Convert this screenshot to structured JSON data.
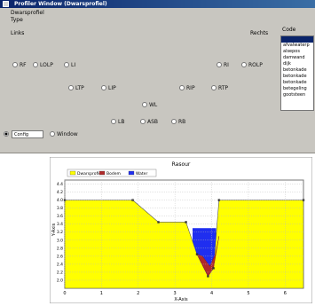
{
  "window": {
    "title": "Profiler Window (Dwarsprofiel)"
  },
  "labels": {
    "dwarsprofiel": "Dwarsprofiel",
    "type": "Type",
    "links": "Links",
    "rechts": "Rechts",
    "code": "Code"
  },
  "radios_left": {
    "rf": "RF",
    "lolp": "LOLP",
    "li": "LI"
  },
  "radios_right": {
    "ri": "RI",
    "rolp": "ROLP"
  },
  "radios_row2": {
    "ltp": "LTP",
    "lip": "LIP",
    "rip": "RIP",
    "rtp": "RTP"
  },
  "radios_center": {
    "wl": "WL",
    "lb": "LB",
    "asb": "ASB",
    "rb": "RB"
  },
  "bottom": {
    "config_option": "Config",
    "window_option": "Window",
    "combo_value": ""
  },
  "code_list": [
    "",
    "afvalwaterp",
    "alsepos",
    "damwand",
    "dijk",
    "betonkade",
    "betonkade",
    "betonkade",
    "betegeling",
    "gootsteen"
  ],
  "chart_data": {
    "type": "area",
    "title": "Rasour",
    "xlabel": "X-Axis",
    "ylabel": "Y-Axis",
    "xlim": [
      0,
      6.5
    ],
    "ylim": [
      1.8,
      4.5
    ],
    "grid": true,
    "legend_position": "top-left",
    "xticks": [
      "0",
      "1",
      "2",
      "3",
      "4",
      "5",
      "6"
    ],
    "yticks": [
      "2.0",
      "2.2",
      "2.4",
      "2.6",
      "2.8",
      "3.0",
      "3.2",
      "3.4",
      "3.6",
      "3.8",
      "4.0",
      "4.2",
      "4.4"
    ],
    "legend": [
      "Dwarsprofiel",
      "Bodem",
      "Water"
    ],
    "series": [
      {
        "name": "Dwarsprofiel",
        "color": "#ffff00",
        "x": [
          0,
          1.85,
          2.55,
          3.3,
          3.6,
          3.9,
          4.05,
          4.2,
          6.5
        ],
        "y": [
          4.0,
          4.0,
          3.45,
          3.45,
          2.65,
          2.1,
          2.3,
          4.0,
          4.0
        ]
      },
      {
        "name": "Water",
        "color": "#1f2ef0",
        "x": [
          3.48,
          4.12
        ],
        "y": [
          3.3,
          3.3
        ]
      },
      {
        "name": "Bodem",
        "color": "#b02a2a",
        "x": [
          3.75,
          3.95,
          4.1
        ],
        "y": [
          2.6,
          2.35,
          2.65
        ]
      }
    ]
  }
}
